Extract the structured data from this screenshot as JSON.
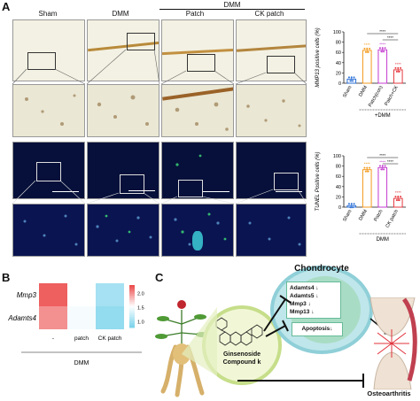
{
  "panelA": {
    "label": "A",
    "dmm_group": "DMM",
    "columns": [
      "Sham",
      "DMM",
      "Patch",
      "CK patch"
    ]
  },
  "chart_data": [
    {
      "type": "bar",
      "ylabel": "MMP13 positive cells (%)",
      "ylim": [
        0,
        100
      ],
      "yticks": [
        0,
        20,
        40,
        60,
        80,
        100
      ],
      "tick_labels": [
        "0",
        "20",
        "40",
        "60",
        "80",
        "100"
      ],
      "categories": [
        "Sham",
        "DMM",
        "Patch(con)",
        "Patch+CK"
      ],
      "values": [
        8,
        64,
        65,
        26
      ],
      "colors": [
        "#2a6fd6",
        "#f39a1c",
        "#c43bd0",
        "#e5393f"
      ],
      "group_label": "+DMM",
      "sig_within": [
        "",
        "****",
        "****",
        "****"
      ],
      "sig_brackets": [
        "****",
        "****"
      ]
    },
    {
      "type": "bar",
      "ylabel": "TUNEL Positive cells (%)",
      "ylim": [
        0,
        100
      ],
      "yticks": [
        0,
        20,
        40,
        60,
        80,
        100
      ],
      "tick_labels": [
        "0",
        "20",
        "40",
        "60",
        "80",
        "100"
      ],
      "categories": [
        "Sham",
        "DMM",
        "Patch",
        "CK patch"
      ],
      "values": [
        3,
        73,
        77,
        17
      ],
      "colors": [
        "#2a6fd6",
        "#f39a1c",
        "#c43bd0",
        "#e5393f"
      ],
      "group_label": "DMM",
      "sig_within": [
        "",
        "****",
        "****",
        "****"
      ],
      "sig_brackets": [
        "****",
        "****"
      ]
    },
    {
      "type": "heatmap",
      "rows": [
        "Mmp3",
        "Adamts4"
      ],
      "columns": [
        "-",
        "patch",
        "CK patch"
      ],
      "group_label": "DMM",
      "values": [
        [
          2.2,
          1.55,
          1.05
        ],
        [
          2.0,
          1.5,
          0.95
        ]
      ],
      "colorbar_ticks": [
        "2.0",
        "1.5",
        "1.0"
      ],
      "colorbar_range": [
        0.8,
        2.3
      ]
    }
  ],
  "panelB": {
    "label": "B"
  },
  "panelC": {
    "label": "C",
    "chondrocyte": "Chondrocyte",
    "genes": [
      "Adamts4 ↓",
      "Adamts5 ↓",
      "Mmp3 ↓",
      "Mmp13 ↓"
    ],
    "apoptosis": "Apoptosis↓",
    "compound_line1": "Ginsenoside",
    "compound_line2": "Compound k",
    "oa": "Osteoarthritis"
  }
}
